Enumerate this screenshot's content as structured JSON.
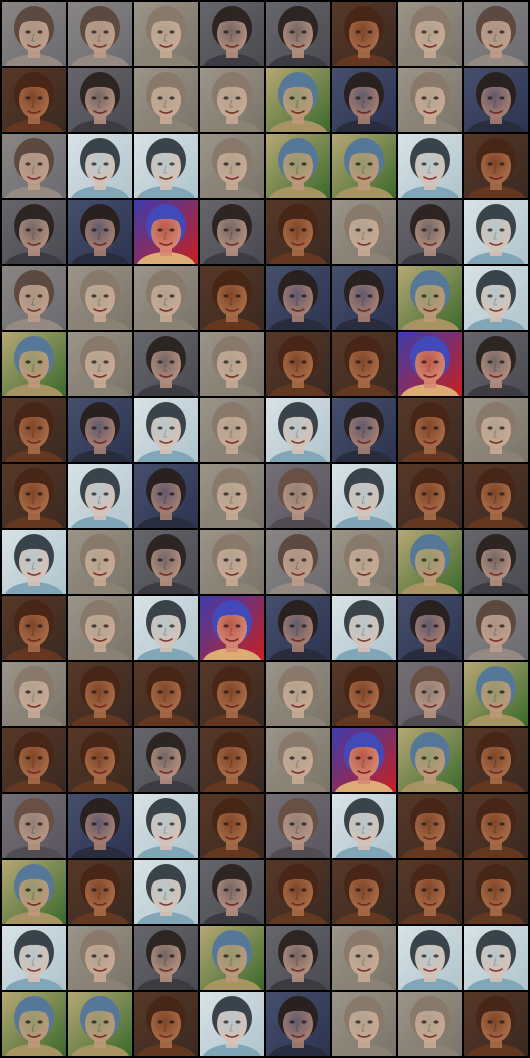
{
  "grid": {
    "rows": 16,
    "cols": 8,
    "palettes": {
      "A": {
        "bg": "#6b6a70",
        "bg2": "#8e8a86",
        "skin": "#c9a58e",
        "hair": "#5a4538",
        "shirt": "#9a8e86",
        "tint": "#b59a86"
      },
      "B": {
        "bg": "#3a2a22",
        "bg2": "#5c3a28",
        "skin": "#b8764e",
        "hair": "#4a2616",
        "shirt": "#6a3a22",
        "tint": "#8a4a2a"
      },
      "C": {
        "bg": "#4a4a50",
        "bg2": "#6a6a70",
        "skin": "#c29a86",
        "hair": "#2a201c",
        "shirt": "#3c3a40",
        "tint": "#7a6a66"
      },
      "D": {
        "bg": "#7a7468",
        "bg2": "#a09a8e",
        "skin": "#d2b29a",
        "hair": "#8a7a6a",
        "shirt": "#8e8478",
        "tint": "#b8a894"
      },
      "E": {
        "bg": "#b0c4cc",
        "bg2": "#dfe7ea",
        "skin": "#dcc2b4",
        "hair": "#2c3238",
        "shirt": "#7aa2b4",
        "tint": "#b8c8cc"
      },
      "F": {
        "bg": "#3a6a2c",
        "bg2": "#c8b080",
        "skin": "#d0a088",
        "hair": "#5a7aa8",
        "shirt": "#b89a6a",
        "tint": "#a0a078"
      },
      "G": {
        "bg": "#2c3450",
        "bg2": "#4a5470",
        "skin": "#b88a76",
        "hair": "#2a1e1a",
        "shirt": "#2a2c3a",
        "tint": "#6a6070"
      },
      "H": {
        "bg": "#5a5660",
        "bg2": "#787478",
        "skin": "#c4a088",
        "hair": "#6a5040",
        "shirt": "#504a50",
        "tint": "#9a8678"
      },
      "I": {
        "bg": "#c82020",
        "bg2": "#2a40c0",
        "skin": "#d89880",
        "hair": "#3050d0",
        "shirt": "#e0c080",
        "tint": "#b86050"
      }
    },
    "tiles": [
      "A",
      "A",
      "D",
      "C",
      "C",
      "B",
      "D",
      "A",
      "B",
      "C",
      "D",
      "D",
      "F",
      "G",
      "D",
      "G",
      "A",
      "E",
      "E",
      "D",
      "F",
      "F",
      "E",
      "B",
      "C",
      "G",
      "I",
      "C",
      "B",
      "D",
      "C",
      "E",
      "A",
      "D",
      "D",
      "B",
      "G",
      "G",
      "F",
      "E",
      "F",
      "D",
      "C",
      "D",
      "B",
      "B",
      "I",
      "C",
      "B",
      "G",
      "E",
      "D",
      "E",
      "G",
      "B",
      "D",
      "B",
      "E",
      "G",
      "D",
      "H",
      "E",
      "B",
      "B",
      "E",
      "D",
      "C",
      "D",
      "A",
      "D",
      "F",
      "C",
      "B",
      "D",
      "E",
      "I",
      "G",
      "E",
      "G",
      "A",
      "D",
      "B",
      "B",
      "B",
      "D",
      "B",
      "H",
      "F",
      "B",
      "B",
      "C",
      "B",
      "D",
      "I",
      "F",
      "B",
      "H",
      "G",
      "E",
      "B",
      "H",
      "E",
      "B",
      "B",
      "F",
      "B",
      "E",
      "C",
      "B",
      "B",
      "B",
      "B",
      "E",
      "D",
      "C",
      "F",
      "C",
      "D",
      "E",
      "E",
      "F",
      "F",
      "B",
      "E",
      "G",
      "D",
      "D",
      "B"
    ]
  }
}
